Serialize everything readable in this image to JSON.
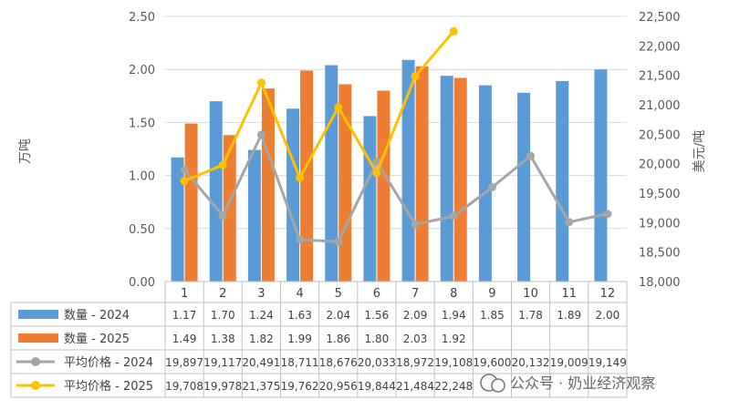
{
  "chart_data": {
    "type": "bar",
    "categories": [
      "1",
      "2",
      "3",
      "4",
      "5",
      "6",
      "7",
      "8",
      "9",
      "10",
      "11",
      "12"
    ],
    "y_left": {
      "label": "万吨",
      "ticks": [
        "0.00",
        "0.50",
        "1.00",
        "1.50",
        "2.00",
        "2.50"
      ],
      "range": [
        0,
        2.5
      ]
    },
    "y_right": {
      "label": "美元/吨",
      "ticks": [
        "18,000",
        "18,500",
        "19,000",
        "19,500",
        "20,000",
        "20,500",
        "21,000",
        "21,500",
        "22,000",
        "22,500"
      ],
      "range": [
        18000,
        22500
      ]
    },
    "series": [
      {
        "name": "数量 - 2024",
        "kind": "bar",
        "axis": "left",
        "color": "#5B9BD5",
        "values": [
          1.17,
          1.7,
          1.24,
          1.63,
          2.04,
          1.56,
          2.09,
          1.94,
          1.85,
          1.78,
          1.89,
          2.0
        ],
        "labels": [
          "1.17",
          "1.70",
          "1.24",
          "1.63",
          "2.04",
          "1.56",
          "2.09",
          "1.94",
          "1.85",
          "1.78",
          "1.89",
          "2.00"
        ]
      },
      {
        "name": "数量 - 2025",
        "kind": "bar",
        "axis": "left",
        "color": "#ED7D31",
        "values": [
          1.49,
          1.38,
          1.82,
          1.99,
          1.86,
          1.8,
          2.03,
          1.92,
          null,
          null,
          null,
          null
        ],
        "labels": [
          "1.49",
          "1.38",
          "1.82",
          "1.99",
          "1.86",
          "1.80",
          "2.03",
          "1.92",
          "",
          "",
          "",
          ""
        ]
      },
      {
        "name": "平均价格 - 2024",
        "kind": "line",
        "axis": "right",
        "color": "#A5A5A5",
        "values": [
          19897,
          19117,
          20491,
          18711,
          18676,
          20033,
          18972,
          19108,
          19600,
          20132,
          19009,
          19149
        ],
        "labels": [
          "19,897",
          "19,117",
          "20,491",
          "18,711",
          "18,676",
          "20,033",
          "18,972",
          "19,108",
          "19,600",
          "20,132",
          "19,009",
          "19,149"
        ]
      },
      {
        "name": "平均价格 - 2025",
        "kind": "line",
        "axis": "right",
        "color": "#FFC000",
        "values": [
          19708,
          19978,
          21375,
          19762,
          20956,
          19844,
          21484,
          22248,
          null,
          null,
          null,
          null
        ],
        "labels": [
          "19,708",
          "19,978",
          "21,375",
          "19,762",
          "20,956",
          "19,844",
          "21,484",
          "22,248",
          "",
          "",
          "",
          ""
        ]
      }
    ],
    "grid": true,
    "legend": "data-table"
  },
  "watermark": {
    "text": "公众号 · 奶业经济观察"
  }
}
